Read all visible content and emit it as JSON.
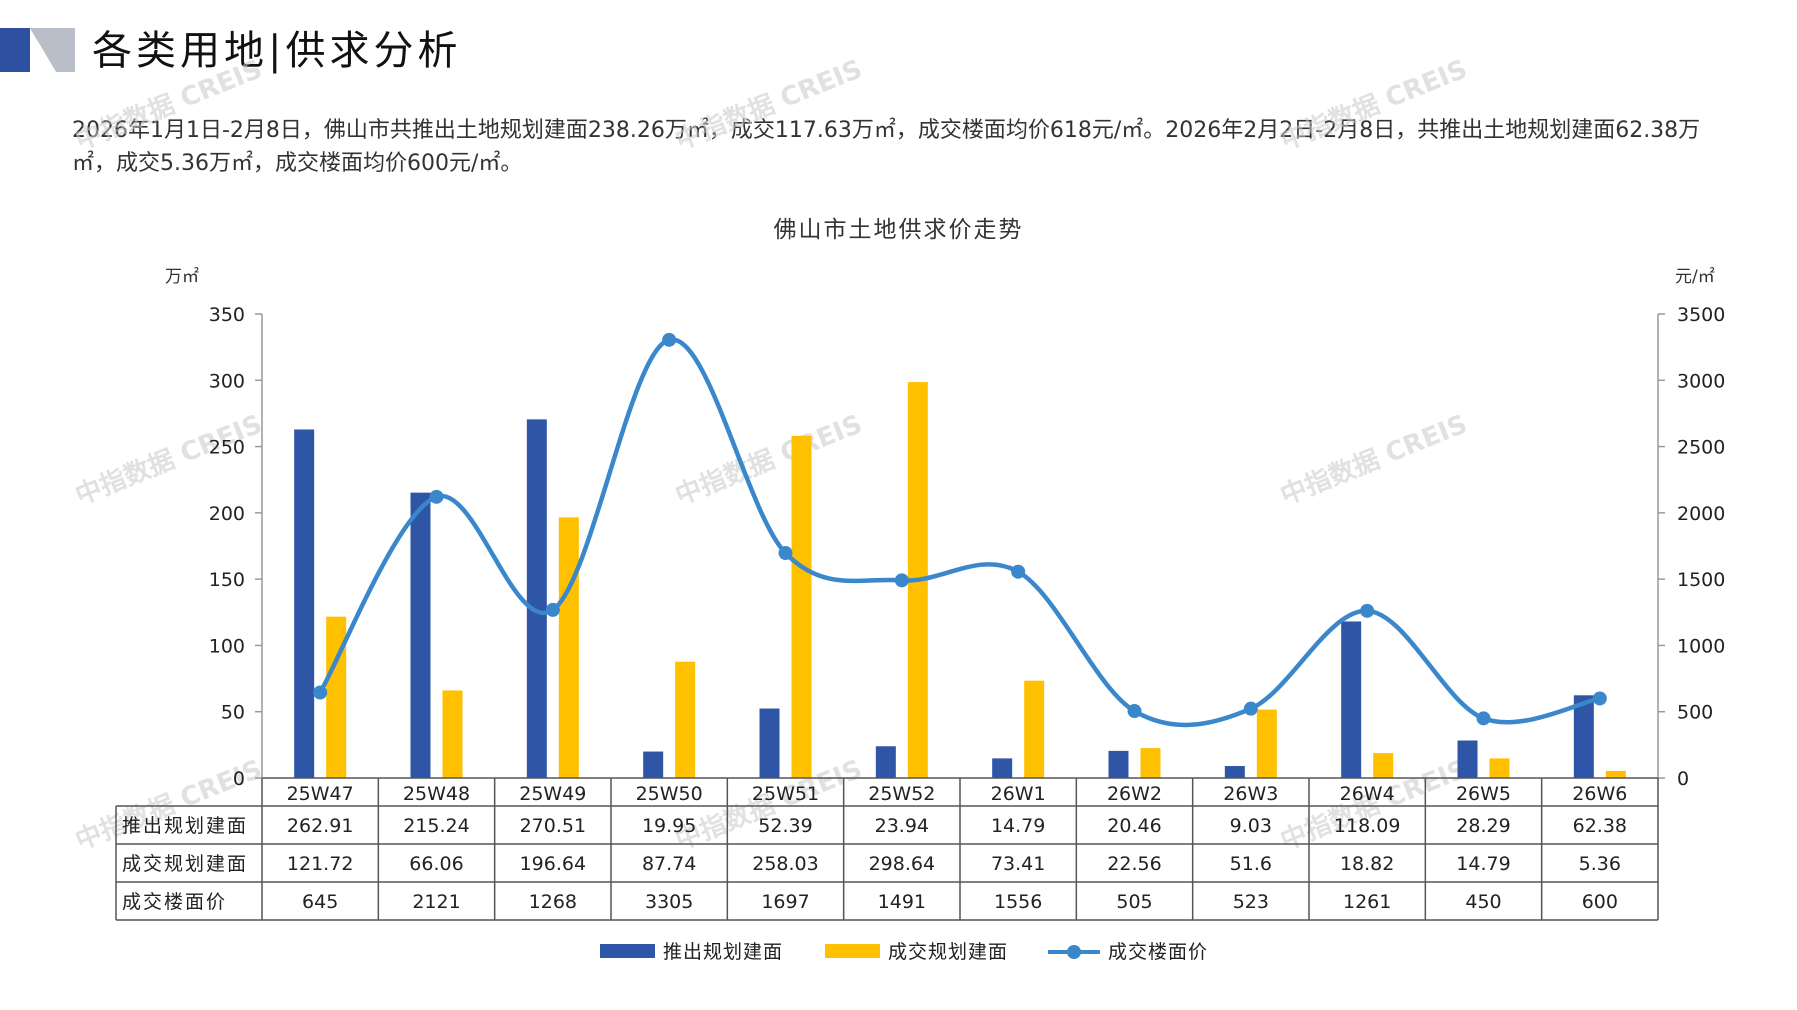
{
  "header": {
    "title": "各类用地|供求分析"
  },
  "summary_text": "2026年1月1日-2月8日，佛山市共推出土地规划建面238.26万㎡，成交117.63万㎡，成交楼面均价618元/㎡。2026年2月2日-2月8日，共推出土地规划建面62.38万㎡，成交5.36万㎡，成交楼面均价600元/㎡。",
  "watermark_text": "中指数据 CREIS",
  "colors": {
    "supply_bar": "#2f56a6",
    "deal_bar": "#ffc000",
    "price_line": "#3a87cc",
    "header_blue": "#2f4fa0",
    "header_gray": "#b9bec8"
  },
  "chart_data": {
    "type": "bar+line",
    "title": "佛山市土地供求价走势",
    "left_unit": "万㎡",
    "right_unit": "元/㎡",
    "y_left": {
      "min": 0,
      "max": 350,
      "ticks": [
        "0",
        "50",
        "100",
        "150",
        "200",
        "250",
        "300",
        "350"
      ]
    },
    "y_right": {
      "min": 0,
      "max": 3500,
      "ticks": [
        "0",
        "500",
        "1000",
        "1500",
        "2000",
        "2500",
        "3000",
        "3500"
      ]
    },
    "categories": [
      "25W47",
      "25W48",
      "25W49",
      "25W50",
      "25W51",
      "25W52",
      "26W1",
      "26W2",
      "26W3",
      "26W4",
      "26W5",
      "26W6"
    ],
    "series": [
      {
        "name": "推出规划建面",
        "axis": "left",
        "kind": "bar",
        "values": [
          262.91,
          215.24,
          270.51,
          19.95,
          52.39,
          23.94,
          14.79,
          20.46,
          9.03,
          118.09,
          28.29,
          62.38
        ],
        "labels": [
          "262.91",
          "215.24",
          "270.51",
          "19.95",
          "52.39",
          "23.94",
          "14.79",
          "20.46",
          "9.03",
          "118.09",
          "28.29",
          "62.38"
        ]
      },
      {
        "name": "成交规划建面",
        "axis": "left",
        "kind": "bar",
        "values": [
          121.72,
          66.06,
          196.64,
          87.74,
          258.03,
          298.64,
          73.41,
          22.56,
          51.6,
          18.82,
          14.79,
          5.36
        ],
        "labels": [
          "121.72",
          "66.06",
          "196.64",
          "87.74",
          "258.03",
          "298.64",
          "73.41",
          "22.56",
          "51.6",
          "18.82",
          "14.79",
          "5.36"
        ]
      },
      {
        "name": "成交楼面价",
        "axis": "right",
        "kind": "line",
        "values": [
          645,
          2121,
          1268,
          3305,
          1697,
          1491,
          1556,
          505,
          523,
          1261,
          450,
          600
        ],
        "labels": [
          "645",
          "2121",
          "1268",
          "3305",
          "1697",
          "1491",
          "1556",
          "505",
          "523",
          "1261",
          "450",
          "600"
        ]
      }
    ],
    "legend_position": "bottom",
    "data_table": true
  }
}
